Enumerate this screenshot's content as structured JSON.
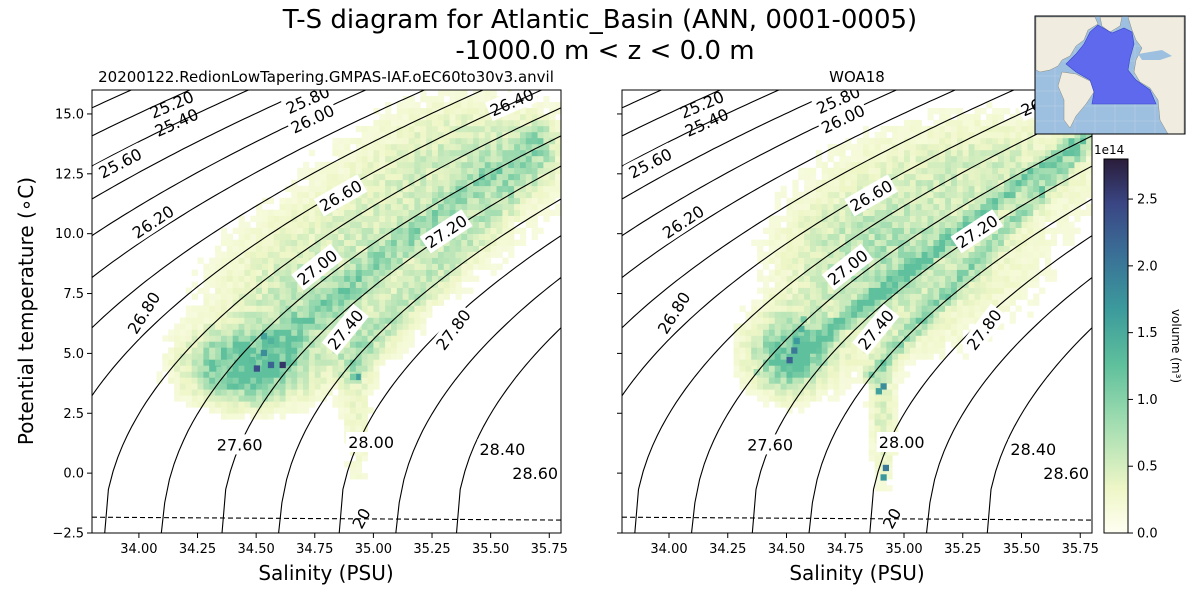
{
  "figure": {
    "title_line1": "T-S diagram for Atlantic_Basin (ANN, 0001-0005)",
    "title_line2": "-1000.0 m < z < 0.0 m"
  },
  "chart_data": [
    {
      "type": "heatmap",
      "title": "20200122.RedionLowTapering.GMPAS-IAF.oEC60to30v3.anvil",
      "xlabel": "Salinity (PSU)",
      "ylabel": "Potential temperature (∘C)",
      "xlim": [
        33.8,
        35.8
      ],
      "ylim": [
        -2.5,
        16
      ],
      "xticks": [
        "34.00",
        "34.25",
        "34.50",
        "34.75",
        "35.00",
        "35.25",
        "35.50",
        "35.75"
      ],
      "yticks": [
        "−2.5",
        "0.0",
        "2.5",
        "5.0",
        "7.5",
        "10.0",
        "12.5",
        "15.0"
      ],
      "density_contours": [
        {
          "label": "25.20",
          "sigma": 25.2,
          "label_S": 34.14,
          "label_T": 15.4
        },
        {
          "label": "25.40",
          "sigma": 25.4,
          "label_S": 34.16,
          "label_T": 14.65
        },
        {
          "label": "25.60",
          "sigma": 25.6,
          "label_S": 33.92,
          "label_T": 12.95
        },
        {
          "label": "25.80",
          "sigma": 25.8,
          "label_S": 34.72,
          "label_T": 15.6
        },
        {
          "label": "26.00",
          "sigma": 26.0,
          "label_S": 34.74,
          "label_T": 14.8
        },
        {
          "label": "26.20",
          "sigma": 26.2,
          "label_S": 34.06,
          "label_T": 10.5
        },
        {
          "label": "26.40",
          "sigma": 26.4,
          "label_S": 35.59,
          "label_T": 15.5
        },
        {
          "label": "26.60",
          "sigma": 26.6,
          "label_S": 34.86,
          "label_T": 11.6
        },
        {
          "label": "26.80",
          "sigma": 26.8,
          "label_S": 34.02,
          "label_T": 6.7
        },
        {
          "label": "27.00",
          "sigma": 27.0,
          "label_S": 34.76,
          "label_T": 8.6
        },
        {
          "label": "27.20",
          "sigma": 27.2,
          "label_S": 35.31,
          "label_T": 10.1
        },
        {
          "label": "27.40",
          "sigma": 27.4,
          "label_S": 34.88,
          "label_T": 6.0
        },
        {
          "label": "27.60",
          "sigma": 27.6,
          "label_S": 34.43,
          "label_T": 1.2
        },
        {
          "label": "27.80",
          "sigma": 27.8,
          "label_S": 35.34,
          "label_T": 6.0
        },
        {
          "label": "28.00",
          "sigma": 28.0,
          "label_S": 34.99,
          "label_T": 1.3
        },
        {
          "label": "28.40",
          "sigma": 28.4,
          "label_S": 35.55,
          "label_T": 1.0
        },
        {
          "label": "28.60",
          "sigma": 28.6,
          "label_S": 35.69,
          "label_T": 0.0
        }
      ],
      "freezing_line": {
        "label": "20",
        "points": [
          [
            33.8,
            -1.84
          ],
          [
            35.8,
            -1.96
          ]
        ],
        "label_S": 34.97,
        "label_T": -2.0
      },
      "volume_hotspots": [
        {
          "S": 34.49,
          "T": 4.25,
          "volume": 2.4
        },
        {
          "S": 34.55,
          "T": 4.4,
          "volume": 2.2
        },
        {
          "S": 34.6,
          "T": 4.4,
          "volume": 2.6
        },
        {
          "S": 34.52,
          "T": 5.6,
          "volume": 1.6
        },
        {
          "S": 34.55,
          "T": 5.4,
          "volume": 1.4
        },
        {
          "S": 34.47,
          "T": 4.6,
          "volume": 1.3
        },
        {
          "S": 34.52,
          "T": 4.9,
          "volume": 1.8
        },
        {
          "S": 34.33,
          "T": 4.2,
          "volume": 0.9
        },
        {
          "S": 34.38,
          "T": 4.5,
          "volume": 0.9
        },
        {
          "S": 34.92,
          "T": 3.9,
          "volume": 1.6
        },
        {
          "S": 34.9,
          "T": 3.9,
          "volume": 1.1
        },
        {
          "S": 34.7,
          "T": 4.9,
          "volume": 0.8
        },
        {
          "S": 34.65,
          "T": 6.0,
          "volume": 0.9
        },
        {
          "S": 34.67,
          "T": 7.3,
          "volume": 0.6
        }
      ]
    },
    {
      "type": "heatmap",
      "title": "WOA18",
      "xlabel": "Salinity (PSU)",
      "xlim": [
        33.8,
        35.8
      ],
      "ylim": [
        -2.5,
        16
      ],
      "xticks": [
        "34.00",
        "34.25",
        "34.50",
        "34.75",
        "35.00",
        "35.25",
        "35.50",
        "35.75"
      ],
      "volume_hotspots": [
        {
          "S": 34.5,
          "T": 4.6,
          "volume": 2.2
        },
        {
          "S": 34.52,
          "T": 5.0,
          "volume": 2.0
        },
        {
          "S": 34.53,
          "T": 5.4,
          "volume": 1.7
        },
        {
          "S": 34.55,
          "T": 5.9,
          "volume": 1.4
        },
        {
          "S": 34.56,
          "T": 6.3,
          "volume": 1.1
        },
        {
          "S": 34.6,
          "T": 4.6,
          "volume": 1.0
        },
        {
          "S": 34.9,
          "T": 3.5,
          "volume": 1.8
        },
        {
          "S": 34.88,
          "T": 3.3,
          "volume": 1.6
        },
        {
          "S": 34.91,
          "T": 0.1,
          "volume": 2.0
        },
        {
          "S": 34.9,
          "T": -0.3,
          "volume": 1.7
        },
        {
          "S": 34.36,
          "T": 4.1,
          "volume": 0.8
        }
      ],
      "colorbar": {
        "label": "volume (m³)",
        "multiplier": "1e14",
        "min": 0,
        "max": 2.8,
        "ticks": [
          "0.0",
          "0.5",
          "1.0",
          "1.5",
          "2.0",
          "2.5"
        ]
      }
    }
  ],
  "colors": {
    "cmap_low": "#ffffe0",
    "cmap_mid": "#64c8a0",
    "cmap_high": "#2a1d3a",
    "ocean": "#9ec0e0",
    "land": "#f0ede0",
    "basin": "#5060f0"
  },
  "inset_map": {
    "label": "Atlantic_Basin region map"
  }
}
